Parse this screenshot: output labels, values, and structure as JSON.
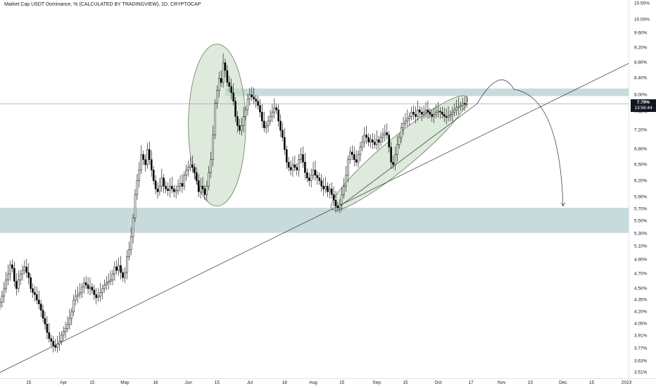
{
  "header": {
    "title": "Market Cap USDT Dominance, % (CALCULATED BY TRADINGVIEW), 1D, CRYPTOCAP"
  },
  "last_price": {
    "value": "7.79%",
    "countdown": "13:56:44"
  },
  "colors": {
    "candle": "#000000",
    "zone": "#b5cece",
    "ellipse_fill": "#c8dcc4",
    "ellipse_stroke": "#6b7a5e",
    "line": "#2a2e39",
    "badge": "#131722"
  },
  "chart_data": {
    "type": "candlestick",
    "title": "Market Cap USDT Dominance, % (CALCULATED BY TRADINGVIEW), 1D, CRYPTOCAP",
    "y_axis_ticks": [
      "10.50%",
      "10.00%",
      "9.60%",
      "9.20%",
      "8.80%",
      "8.40%",
      "8.00%",
      "7.60%",
      "7.20%",
      "6.80%",
      "6.50%",
      "6.20%",
      "5.90%",
      "5.70%",
      "5.50%",
      "5.30%",
      "5.10%",
      "4.90%",
      "4.70%",
      "4.50%",
      "4.35%",
      "4.20%",
      "4.05%",
      "3.91%",
      "3.77%",
      "3.63%",
      "3.51%"
    ],
    "x_axis_ticks": [
      "15",
      "Apr",
      "15",
      "May",
      "16",
      "Jun",
      "15",
      "Jul",
      "18",
      "Aug",
      "15",
      "Sep",
      "15",
      "Oct",
      "17",
      "Nov",
      "15",
      "Dec",
      "15",
      "2023"
    ],
    "ylim": [
      3.45,
      10.6
    ],
    "scale": "log",
    "x_range": [
      "2022-03-01",
      "2023-01-02"
    ],
    "candles": [
      [
        "2022-03-01",
        4.32
      ],
      [
        "2022-03-02",
        4.4
      ],
      [
        "2022-03-03",
        4.5
      ],
      [
        "2022-03-04",
        4.62
      ],
      [
        "2022-03-05",
        4.7
      ],
      [
        "2022-03-06",
        4.83
      ],
      [
        "2022-03-07",
        4.78
      ],
      [
        "2022-03-08",
        4.6
      ],
      [
        "2022-03-09",
        4.5
      ],
      [
        "2022-03-10",
        4.62
      ],
      [
        "2022-03-11",
        4.7
      ],
      [
        "2022-03-12",
        4.75
      ],
      [
        "2022-03-13",
        4.8
      ],
      [
        "2022-03-14",
        4.72
      ],
      [
        "2022-03-15",
        4.65
      ],
      [
        "2022-03-16",
        4.5
      ],
      [
        "2022-03-17",
        4.45
      ],
      [
        "2022-03-18",
        4.42
      ],
      [
        "2022-03-19",
        4.35
      ],
      [
        "2022-03-20",
        4.3
      ],
      [
        "2022-03-21",
        4.22
      ],
      [
        "2022-03-22",
        4.12
      ],
      [
        "2022-03-23",
        4.05
      ],
      [
        "2022-03-24",
        3.95
      ],
      [
        "2022-03-25",
        3.88
      ],
      [
        "2022-03-26",
        3.85
      ],
      [
        "2022-03-27",
        3.8
      ],
      [
        "2022-03-28",
        3.78
      ],
      [
        "2022-03-29",
        3.82
      ],
      [
        "2022-03-30",
        3.85
      ],
      [
        "2022-03-31",
        3.92
      ],
      [
        "2022-04-01",
        3.96
      ],
      [
        "2022-04-02",
        4.0
      ],
      [
        "2022-04-03",
        4.05
      ],
      [
        "2022-04-04",
        4.12
      ],
      [
        "2022-04-05",
        4.2
      ],
      [
        "2022-04-06",
        4.35
      ],
      [
        "2022-04-07",
        4.4
      ],
      [
        "2022-04-08",
        4.42
      ],
      [
        "2022-04-09",
        4.45
      ],
      [
        "2022-04-10",
        4.52
      ],
      [
        "2022-04-11",
        4.58
      ],
      [
        "2022-04-12",
        4.55
      ],
      [
        "2022-04-13",
        4.5
      ],
      [
        "2022-04-14",
        4.52
      ],
      [
        "2022-04-15",
        4.48
      ],
      [
        "2022-04-16",
        4.42
      ],
      [
        "2022-04-17",
        4.38
      ],
      [
        "2022-04-18",
        4.4
      ],
      [
        "2022-04-19",
        4.45
      ],
      [
        "2022-04-20",
        4.5
      ],
      [
        "2022-04-21",
        4.55
      ],
      [
        "2022-04-22",
        4.58
      ],
      [
        "2022-04-23",
        4.6
      ],
      [
        "2022-04-24",
        4.62
      ],
      [
        "2022-04-25",
        4.7
      ],
      [
        "2022-04-26",
        4.8
      ],
      [
        "2022-04-27",
        4.75
      ],
      [
        "2022-04-28",
        4.82
      ],
      [
        "2022-04-29",
        4.72
      ],
      [
        "2022-04-30",
        4.65
      ],
      [
        "2022-05-01",
        4.72
      ],
      [
        "2022-05-02",
        4.95
      ],
      [
        "2022-05-03",
        5.05
      ],
      [
        "2022-05-04",
        5.25
      ],
      [
        "2022-05-05",
        5.55
      ],
      [
        "2022-05-06",
        5.95
      ],
      [
        "2022-05-07",
        6.2
      ],
      [
        "2022-05-08",
        6.4
      ],
      [
        "2022-05-09",
        6.7
      ],
      [
        "2022-05-10",
        6.6
      ],
      [
        "2022-05-11",
        6.5
      ],
      [
        "2022-05-12",
        6.8
      ],
      [
        "2022-05-13",
        6.6
      ],
      [
        "2022-05-14",
        6.4
      ],
      [
        "2022-05-15",
        6.2
      ],
      [
        "2022-05-16",
        6.05
      ],
      [
        "2022-05-17",
        6.0
      ],
      [
        "2022-05-18",
        6.1
      ],
      [
        "2022-05-19",
        6.25
      ],
      [
        "2022-05-20",
        6.1
      ],
      [
        "2022-05-21",
        6.05
      ],
      [
        "2022-05-22",
        6.02
      ],
      [
        "2022-05-23",
        6.1
      ],
      [
        "2022-05-24",
        6.05
      ],
      [
        "2022-05-25",
        6.0
      ],
      [
        "2022-05-26",
        6.02
      ],
      [
        "2022-05-27",
        6.1
      ],
      [
        "2022-05-28",
        6.15
      ],
      [
        "2022-05-29",
        6.1
      ],
      [
        "2022-05-30",
        6.3
      ],
      [
        "2022-05-31",
        6.4
      ],
      [
        "2022-06-01",
        6.45
      ],
      [
        "2022-06-02",
        6.5
      ],
      [
        "2022-06-03",
        6.45
      ],
      [
        "2022-06-04",
        6.35
      ],
      [
        "2022-06-05",
        6.2
      ],
      [
        "2022-06-06",
        6.0
      ],
      [
        "2022-06-07",
        6.1
      ],
      [
        "2022-06-08",
        6.05
      ],
      [
        "2022-06-09",
        5.95
      ],
      [
        "2022-06-10",
        6.1
      ],
      [
        "2022-06-11",
        6.35
      ],
      [
        "2022-06-12",
        6.6
      ],
      [
        "2022-06-13",
        7.1
      ],
      [
        "2022-06-14",
        7.8
      ],
      [
        "2022-06-15",
        8.1
      ],
      [
        "2022-06-16",
        8.4
      ],
      [
        "2022-06-17",
        8.3
      ],
      [
        "2022-06-18",
        8.8
      ],
      [
        "2022-06-19",
        8.6
      ],
      [
        "2022-06-20",
        8.3
      ],
      [
        "2022-06-21",
        8.2
      ],
      [
        "2022-06-22",
        8.05
      ],
      [
        "2022-06-23",
        7.85
      ],
      [
        "2022-06-24",
        7.5
      ],
      [
        "2022-06-25",
        7.3
      ],
      [
        "2022-06-26",
        7.2
      ],
      [
        "2022-06-27",
        7.3
      ],
      [
        "2022-06-28",
        7.5
      ],
      [
        "2022-06-29",
        7.65
      ],
      [
        "2022-06-30",
        7.9
      ],
      [
        "2022-07-01",
        8.0
      ],
      [
        "2022-07-02",
        7.95
      ],
      [
        "2022-07-03",
        7.9
      ],
      [
        "2022-07-04",
        7.85
      ],
      [
        "2022-07-05",
        7.75
      ],
      [
        "2022-07-06",
        7.6
      ],
      [
        "2022-07-07",
        7.4
      ],
      [
        "2022-07-08",
        7.25
      ],
      [
        "2022-07-09",
        7.3
      ],
      [
        "2022-07-10",
        7.4
      ],
      [
        "2022-07-11",
        7.5
      ],
      [
        "2022-07-12",
        7.6
      ],
      [
        "2022-07-13",
        7.7
      ],
      [
        "2022-07-14",
        7.65
      ],
      [
        "2022-07-15",
        7.4
      ],
      [
        "2022-07-16",
        7.2
      ],
      [
        "2022-07-17",
        7.05
      ],
      [
        "2022-07-18",
        6.8
      ],
      [
        "2022-07-19",
        6.55
      ],
      [
        "2022-07-20",
        6.45
      ],
      [
        "2022-07-21",
        6.4
      ],
      [
        "2022-07-22",
        6.5
      ],
      [
        "2022-07-23",
        6.45
      ],
      [
        "2022-07-24",
        6.4
      ],
      [
        "2022-07-25",
        6.6
      ],
      [
        "2022-07-26",
        6.7
      ],
      [
        "2022-07-27",
        6.55
      ],
      [
        "2022-07-28",
        6.35
      ],
      [
        "2022-07-29",
        6.25
      ],
      [
        "2022-07-30",
        6.2
      ],
      [
        "2022-07-31",
        6.3
      ],
      [
        "2022-08-01",
        6.4
      ],
      [
        "2022-08-02",
        6.3
      ],
      [
        "2022-08-03",
        6.25
      ],
      [
        "2022-08-04",
        6.2
      ],
      [
        "2022-08-05",
        6.1
      ],
      [
        "2022-08-06",
        6.05
      ],
      [
        "2022-08-07",
        6.1
      ],
      [
        "2022-08-08",
        6.0
      ],
      [
        "2022-08-09",
        6.05
      ],
      [
        "2022-08-10",
        5.95
      ],
      [
        "2022-08-11",
        5.85
      ],
      [
        "2022-08-12",
        5.75
      ],
      [
        "2022-08-13",
        5.72
      ],
      [
        "2022-08-14",
        5.78
      ],
      [
        "2022-08-15",
        5.95
      ],
      [
        "2022-08-16",
        6.1
      ],
      [
        "2022-08-17",
        6.3
      ],
      [
        "2022-08-18",
        6.6
      ],
      [
        "2022-08-19",
        6.75
      ],
      [
        "2022-08-20",
        6.7
      ],
      [
        "2022-08-21",
        6.6
      ],
      [
        "2022-08-22",
        6.55
      ],
      [
        "2022-08-23",
        6.7
      ],
      [
        "2022-08-24",
        6.85
      ],
      [
        "2022-08-25",
        6.95
      ],
      [
        "2022-08-26",
        7.1
      ],
      [
        "2022-08-27",
        7.05
      ],
      [
        "2022-08-28",
        6.95
      ],
      [
        "2022-08-29",
        7.0
      ],
      [
        "2022-08-30",
        6.95
      ],
      [
        "2022-08-31",
        6.9
      ],
      [
        "2022-09-01",
        7.0
      ],
      [
        "2022-09-02",
        6.95
      ],
      [
        "2022-09-03",
        7.05
      ],
      [
        "2022-09-04",
        7.1
      ],
      [
        "2022-09-05",
        7.15
      ],
      [
        "2022-09-06",
        7.1
      ],
      [
        "2022-09-07",
        6.85
      ],
      [
        "2022-09-08",
        6.55
      ],
      [
        "2022-09-09",
        6.5
      ],
      [
        "2022-09-10",
        6.7
      ],
      [
        "2022-09-11",
        6.9
      ],
      [
        "2022-09-12",
        7.05
      ],
      [
        "2022-09-13",
        7.25
      ],
      [
        "2022-09-14",
        7.35
      ],
      [
        "2022-09-15",
        7.4
      ],
      [
        "2022-09-16",
        7.45
      ],
      [
        "2022-09-17",
        7.5
      ],
      [
        "2022-09-18",
        7.6
      ],
      [
        "2022-09-19",
        7.55
      ],
      [
        "2022-09-20",
        7.5
      ],
      [
        "2022-09-21",
        7.65
      ],
      [
        "2022-09-22",
        7.6
      ],
      [
        "2022-09-23",
        7.55
      ],
      [
        "2022-09-24",
        7.6
      ],
      [
        "2022-09-25",
        7.65
      ],
      [
        "2022-09-26",
        7.6
      ],
      [
        "2022-09-27",
        7.55
      ],
      [
        "2022-09-28",
        7.5
      ],
      [
        "2022-09-29",
        7.55
      ],
      [
        "2022-09-30",
        7.6
      ],
      [
        "2022-10-01",
        7.62
      ],
      [
        "2022-10-02",
        7.6
      ],
      [
        "2022-10-03",
        7.55
      ],
      [
        "2022-10-04",
        7.5
      ],
      [
        "2022-10-05",
        7.48
      ],
      [
        "2022-10-06",
        7.52
      ],
      [
        "2022-10-07",
        7.55
      ],
      [
        "2022-10-08",
        7.6
      ],
      [
        "2022-10-09",
        7.65
      ],
      [
        "2022-10-10",
        7.7
      ],
      [
        "2022-10-11",
        7.72
      ],
      [
        "2022-10-12",
        7.75
      ],
      [
        "2022-10-13",
        7.8
      ],
      [
        "2022-10-14",
        7.78
      ],
      [
        "2022-10-15",
        7.79
      ]
    ],
    "annotations": {
      "resistance_zone": [
        7.97,
        8.15
      ],
      "support_zone": [
        5.31,
        5.72
      ],
      "horizontal_line": 7.79,
      "trendline": [
        [
          "2022-03-01",
          3.51
        ],
        [
          "2023-01-02",
          8.78
        ]
      ],
      "channel_line": [
        [
          "2022-08-13",
          5.72
        ],
        [
          "2022-10-20",
          7.79
        ]
      ],
      "projection_arrow": [
        [
          "2022-10-20",
          7.79
        ],
        [
          "2022-11-07",
          8.13
        ],
        [
          "2022-12-01",
          5.75
        ]
      ],
      "ellipses": [
        {
          "start": "2022-06-01",
          "end": "2022-06-29",
          "low": 5.75,
          "high": 9.3
        },
        {
          "start": "2022-08-10",
          "end": "2022-10-15",
          "low": 5.7,
          "high": 7.95
        }
      ]
    }
  }
}
